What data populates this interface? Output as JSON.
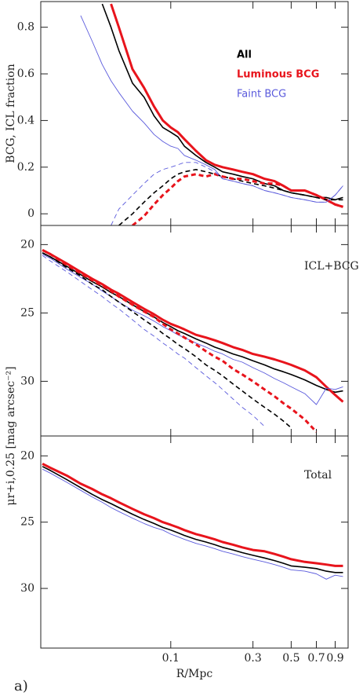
{
  "panel_label": "a)",
  "chart_data": [
    {
      "type": "line",
      "ylabel": "BCG, ICL fraction",
      "xlog": true,
      "xlim": [
        0.0176,
        1.07
      ],
      "xticks": [
        0.1,
        0.3,
        0.5,
        0.7,
        0.9
      ],
      "ylim": [
        -0.05,
        0.91
      ],
      "yticks": [
        0,
        0.2,
        0.4,
        0.6,
        0.8
      ],
      "x": [
        0.018,
        0.02,
        0.025,
        0.03,
        0.035,
        0.04,
        0.045,
        0.05,
        0.06,
        0.07,
        0.08,
        0.09,
        0.1,
        0.11,
        0.12,
        0.14,
        0.16,
        0.18,
        0.2,
        0.23,
        0.26,
        0.3,
        0.35,
        0.4,
        0.45,
        0.5,
        0.6,
        0.7,
        0.8,
        0.9,
        1.0
      ],
      "series": [
        {
          "name": "All",
          "color": "#000000",
          "linewidth": 1.6,
          "dashed": false,
          "values": [
            null,
            null,
            null,
            null,
            null,
            0.9,
            0.8,
            0.7,
            0.56,
            0.5,
            0.42,
            0.37,
            0.35,
            0.33,
            0.29,
            0.25,
            0.22,
            0.2,
            0.18,
            0.17,
            0.16,
            0.15,
            0.13,
            0.12,
            0.1,
            0.09,
            0.08,
            0.07,
            0.07,
            0.06,
            0.07
          ]
        },
        {
          "name": "Luminous BCG",
          "color": "#e8141c",
          "linewidth": 3,
          "dashed": false,
          "values": [
            null,
            null,
            null,
            null,
            null,
            null,
            0.9,
            0.8,
            0.62,
            0.54,
            0.46,
            0.4,
            0.37,
            0.35,
            0.32,
            0.27,
            0.23,
            0.21,
            0.2,
            0.19,
            0.18,
            0.17,
            0.15,
            0.14,
            0.12,
            0.1,
            0.1,
            0.08,
            0.06,
            0.04,
            0.03
          ]
        },
        {
          "name": "Faint BCG",
          "color": "#5a5adc",
          "linewidth": 0.9,
          "dashed": false,
          "values": [
            null,
            null,
            null,
            0.85,
            0.74,
            0.64,
            0.57,
            0.52,
            0.44,
            0.39,
            0.34,
            0.31,
            0.29,
            0.28,
            0.25,
            0.23,
            0.21,
            0.19,
            0.15,
            0.14,
            0.13,
            0.12,
            0.1,
            0.09,
            0.08,
            0.07,
            0.06,
            0.05,
            0.05,
            0.08,
            0.12
          ]
        },
        {
          "color": "#000000",
          "linewidth": 1.6,
          "dashed": true,
          "values": [
            null,
            null,
            null,
            null,
            null,
            null,
            null,
            -0.05,
            0.0,
            0.05,
            0.09,
            0.12,
            0.15,
            0.17,
            0.18,
            0.19,
            0.18,
            0.17,
            0.16,
            0.15,
            0.14,
            0.13,
            0.12,
            0.11,
            0.1,
            0.09,
            0.08,
            0.07,
            0.06,
            0.06,
            0.06
          ]
        },
        {
          "color": "#e8141c",
          "linewidth": 3,
          "dashed": true,
          "values": [
            null,
            null,
            null,
            null,
            null,
            null,
            null,
            null,
            -0.05,
            -0.01,
            0.04,
            0.08,
            0.11,
            0.14,
            0.16,
            0.17,
            0.16,
            0.17,
            0.16,
            0.15,
            0.15,
            0.14,
            0.13,
            0.13,
            0.12,
            0.1,
            0.1,
            0.08,
            0.06,
            0.04,
            0.03
          ]
        },
        {
          "color": "#5a5adc",
          "linewidth": 0.9,
          "dashed": true,
          "values": [
            null,
            null,
            null,
            null,
            null,
            null,
            -0.05,
            0.02,
            0.08,
            0.13,
            0.17,
            0.19,
            0.2,
            0.21,
            0.22,
            0.22,
            0.2,
            0.18,
            0.15,
            0.14,
            0.13,
            0.12,
            0.1,
            0.09,
            0.08,
            0.07,
            0.06,
            0.05,
            0.05,
            0.08,
            0.12
          ]
        }
      ]
    },
    {
      "type": "line",
      "ylabel": "μr+i,0.25 [mag arcsec⁻²]",
      "annotation": "ICL+BCG",
      "xlog": true,
      "xlim": [
        0.0176,
        1.07
      ],
      "xticks": [
        0.1,
        0.3,
        0.5,
        0.7,
        0.9
      ],
      "ylim": [
        34.0,
        18.6
      ],
      "yticks": [
        20,
        25,
        30
      ],
      "x": [
        0.018,
        0.02,
        0.025,
        0.03,
        0.035,
        0.04,
        0.045,
        0.05,
        0.06,
        0.07,
        0.08,
        0.09,
        0.1,
        0.11,
        0.12,
        0.14,
        0.16,
        0.18,
        0.2,
        0.23,
        0.26,
        0.3,
        0.35,
        0.4,
        0.45,
        0.5,
        0.6,
        0.7,
        0.8,
        0.9,
        1.0
      ],
      "series": [
        {
          "color": "#000000",
          "linewidth": 1.6,
          "dashed": false,
          "values": [
            20.6,
            20.9,
            21.6,
            22.2,
            22.7,
            23.1,
            23.5,
            23.8,
            24.4,
            24.9,
            25.3,
            25.7,
            26.0,
            26.3,
            26.5,
            26.9,
            27.2,
            27.5,
            27.7,
            28.0,
            28.2,
            28.5,
            28.8,
            29.1,
            29.3,
            29.5,
            29.9,
            30.3,
            30.6,
            30.8,
            30.7
          ]
        },
        {
          "color": "#e8141c",
          "linewidth": 3,
          "dashed": false,
          "values": [
            20.4,
            20.7,
            21.4,
            22.0,
            22.5,
            22.9,
            23.3,
            23.6,
            24.2,
            24.7,
            25.1,
            25.5,
            25.8,
            26.0,
            26.2,
            26.6,
            26.8,
            27.0,
            27.2,
            27.5,
            27.7,
            28.0,
            28.2,
            28.4,
            28.6,
            28.8,
            29.2,
            29.7,
            30.4,
            31.0,
            31.5
          ]
        },
        {
          "color": "#5a5adc",
          "linewidth": 0.9,
          "dashed": false,
          "values": [
            20.7,
            21.0,
            21.8,
            22.4,
            22.9,
            23.4,
            23.8,
            24.2,
            24.8,
            25.2,
            25.6,
            26.0,
            26.3,
            26.6,
            26.8,
            27.2,
            27.5,
            27.8,
            28.0,
            28.4,
            28.6,
            29.0,
            29.4,
            29.8,
            30.1,
            30.4,
            30.9,
            31.7,
            30.5,
            30.6,
            30.4
          ]
        },
        {
          "color": "#000000",
          "linewidth": 1.6,
          "dashed": true,
          "values": [
            20.6,
            20.9,
            21.7,
            22.3,
            22.9,
            23.3,
            23.8,
            24.2,
            24.9,
            25.5,
            26.0,
            26.5,
            26.9,
            27.3,
            27.6,
            28.2,
            28.8,
            29.2,
            29.6,
            30.2,
            30.7,
            31.3,
            31.9,
            32.4,
            32.9,
            33.4,
            null,
            null,
            null,
            null,
            null
          ]
        },
        {
          "color": "#e8141c",
          "linewidth": 3,
          "dashed": true,
          "values": [
            20.4,
            20.7,
            21.5,
            22.1,
            22.6,
            23.0,
            23.4,
            23.8,
            24.4,
            24.9,
            25.3,
            25.8,
            26.2,
            26.5,
            26.8,
            27.3,
            27.8,
            28.2,
            28.5,
            29.1,
            29.5,
            30.0,
            30.6,
            31.1,
            31.6,
            32.0,
            32.8,
            33.7,
            null,
            null,
            null
          ]
        },
        {
          "color": "#5a5adc",
          "linewidth": 0.9,
          "dashed": true,
          "values": [
            20.8,
            21.2,
            22.0,
            22.7,
            23.3,
            23.8,
            24.3,
            24.7,
            25.5,
            26.2,
            26.7,
            27.2,
            27.6,
            28.0,
            28.3,
            29.0,
            29.6,
            30.1,
            30.6,
            31.3,
            31.9,
            32.5,
            33.3,
            null,
            null,
            null,
            null,
            null,
            null,
            null,
            null
          ]
        }
      ]
    },
    {
      "type": "line",
      "annotation": "Total",
      "xlabel": "R/Mpc",
      "xlog": true,
      "xlim": [
        0.0176,
        1.07
      ],
      "xticks": [
        0.1,
        0.3,
        0.5,
        0.7,
        0.9
      ],
      "ylim": [
        34.5,
        18.5
      ],
      "yticks": [
        20,
        25,
        30
      ],
      "x": [
        0.018,
        0.02,
        0.025,
        0.03,
        0.035,
        0.04,
        0.045,
        0.05,
        0.06,
        0.07,
        0.08,
        0.09,
        0.1,
        0.11,
        0.12,
        0.14,
        0.16,
        0.18,
        0.2,
        0.23,
        0.26,
        0.3,
        0.35,
        0.4,
        0.45,
        0.5,
        0.6,
        0.7,
        0.8,
        0.9,
        1.0
      ],
      "series": [
        {
          "color": "#000000",
          "linewidth": 1.6,
          "dashed": false,
          "values": [
            20.8,
            21.1,
            21.8,
            22.4,
            22.9,
            23.3,
            23.6,
            23.9,
            24.4,
            24.8,
            25.1,
            25.4,
            25.6,
            25.8,
            26.0,
            26.3,
            26.5,
            26.7,
            26.9,
            27.1,
            27.3,
            27.5,
            27.7,
            27.9,
            28.1,
            28.3,
            28.4,
            28.5,
            28.7,
            28.8,
            28.8
          ]
        },
        {
          "color": "#e8141c",
          "linewidth": 3,
          "dashed": false,
          "values": [
            20.6,
            20.9,
            21.5,
            22.1,
            22.5,
            22.9,
            23.2,
            23.5,
            24.0,
            24.4,
            24.7,
            25.0,
            25.2,
            25.4,
            25.6,
            25.9,
            26.1,
            26.3,
            26.5,
            26.7,
            26.9,
            27.1,
            27.2,
            27.4,
            27.6,
            27.8,
            28.0,
            28.1,
            28.2,
            28.3,
            28.3
          ]
        },
        {
          "color": "#5a5adc",
          "linewidth": 0.9,
          "dashed": false,
          "values": [
            21.0,
            21.3,
            22.0,
            22.6,
            23.1,
            23.5,
            23.9,
            24.2,
            24.7,
            25.1,
            25.4,
            25.6,
            25.9,
            26.1,
            26.3,
            26.6,
            26.8,
            27.0,
            27.2,
            27.4,
            27.6,
            27.8,
            28.0,
            28.2,
            28.4,
            28.6,
            28.7,
            28.9,
            29.3,
            29.0,
            29.1
          ]
        }
      ]
    }
  ]
}
